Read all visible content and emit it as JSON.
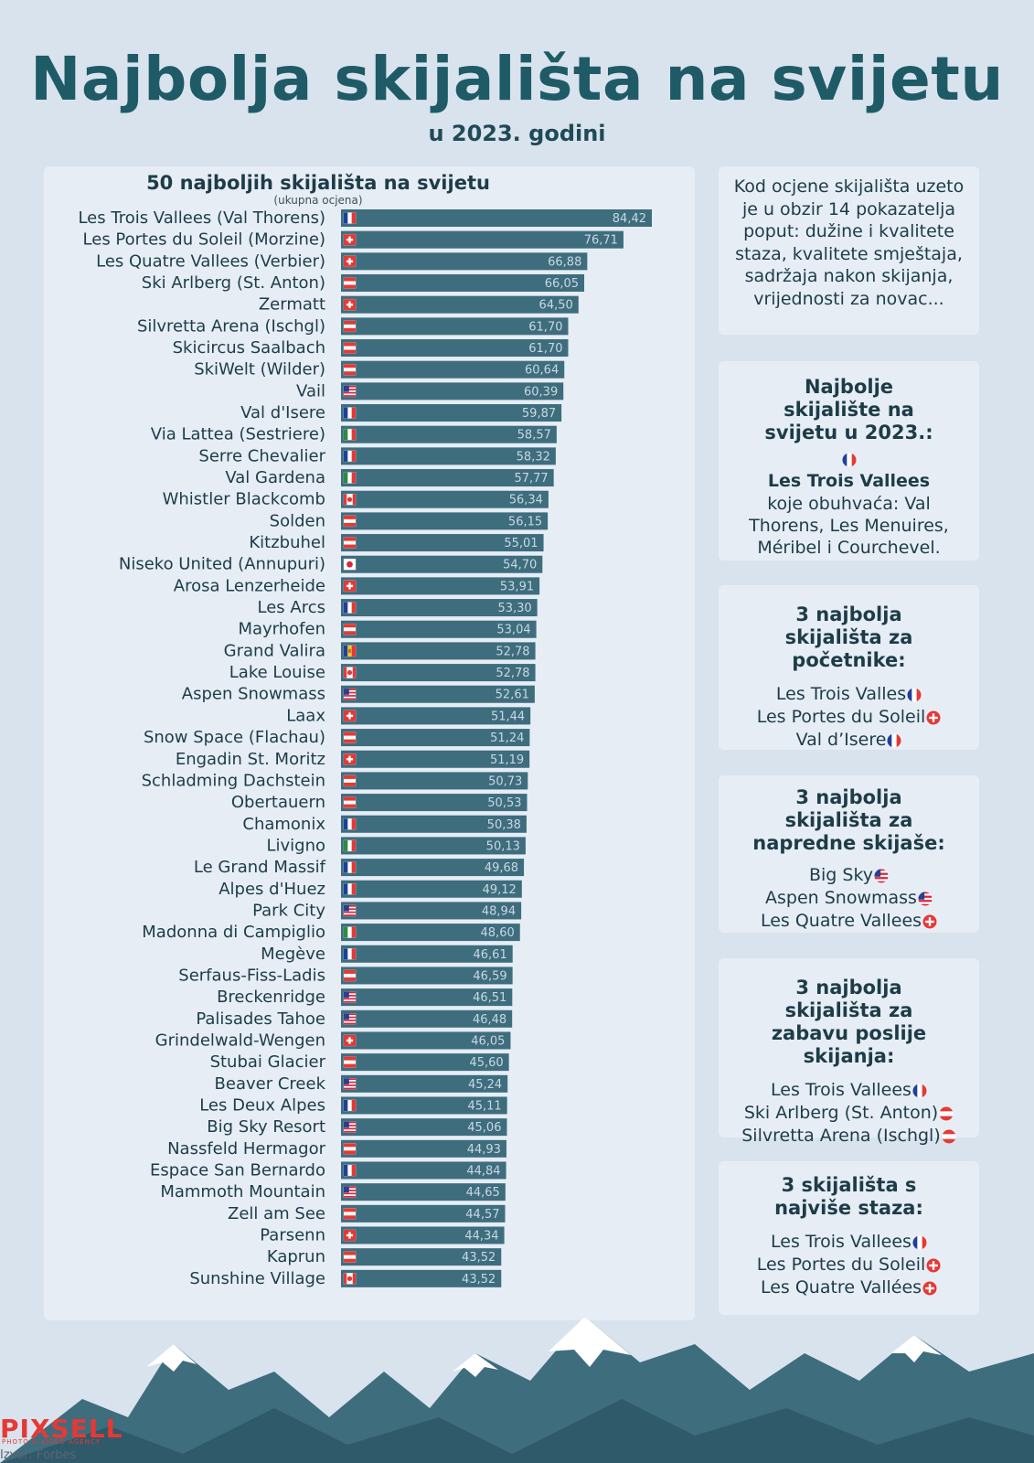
{
  "title": "Najbolja skijališta na svijetu",
  "subtitle": "u 2023. godini",
  "colors": {
    "bar": "#3e6d7e",
    "title": "#1f5b66",
    "panel": "#e6edf5",
    "background": "#d9e3ee",
    "mountain": "#3e6d7e",
    "snow": "#ffffff"
  },
  "chart_data": {
    "type": "bar",
    "orientation": "horizontal",
    "title": "50 najboljih skijališta na svijetu",
    "subtitle": "(ukupna ocjena)",
    "xlim": [
      0,
      84.42
    ],
    "categories": [
      "Les Trois Vallees (Val Thorens)",
      "Les Portes du Soleil (Morzine)",
      "Les Quatre Vallees (Verbier)",
      "Ski Arlberg (St. Anton)",
      "Zermatt",
      "Silvretta Arena (Ischgl)",
      "Skicircus Saalbach",
      "SkiWelt (Wilder)",
      "Vail",
      "Val d'Isere",
      "Via Lattea (Sestriere)",
      "Serre Chevalier",
      "Val Gardena",
      "Whistler Blackcomb",
      "Solden",
      "Kitzbuhel",
      "Niseko United (Annupuri)",
      "Arosa Lenzerheide",
      "Les Arcs",
      "Mayrhofen",
      "Grand Valira",
      "Lake Louise",
      "Aspen Snowmass",
      "Laax",
      "Snow Space (Flachau)",
      "Engadin St. Moritz",
      "Schladming Dachstein",
      "Obertauern",
      "Chamonix",
      "Livigno",
      "Le Grand Massif",
      "Alpes d'Huez",
      "Park City",
      "Madonna di Campiglio",
      "Megève",
      "Serfaus-Fiss-Ladis",
      "Breckenridge",
      "Palisades Tahoe",
      "Grindelwald-Wengen",
      "Stubai Glacier",
      "Beaver Creek",
      "Les Deux Alpes",
      "Big Sky Resort",
      "Nassfeld Hermagor",
      "Espace San Bernardo",
      "Mammoth Mountain",
      "Zell am See",
      "Parsenn",
      "Kaprun",
      "Sunshine Village"
    ],
    "values": [
      84.42,
      76.71,
      66.88,
      66.05,
      64.5,
      61.7,
      61.7,
      60.64,
      60.39,
      59.87,
      58.57,
      58.32,
      57.77,
      56.34,
      56.15,
      55.01,
      54.7,
      53.91,
      53.3,
      53.04,
      52.78,
      52.78,
      52.61,
      51.44,
      51.24,
      51.19,
      50.73,
      50.53,
      50.38,
      50.13,
      49.68,
      49.12,
      48.94,
      48.6,
      46.61,
      46.59,
      46.51,
      46.48,
      46.05,
      45.6,
      45.24,
      45.11,
      45.06,
      44.93,
      44.84,
      44.65,
      44.57,
      44.34,
      43.52,
      43.52
    ],
    "value_labels": [
      "84,42",
      "76,71",
      "66,88",
      "66,05",
      "64,50",
      "61,70",
      "61,70",
      "60,64",
      "60,39",
      "59,87",
      "58,57",
      "58,32",
      "57,77",
      "56,34",
      "56,15",
      "55,01",
      "54,70",
      "53,91",
      "53,30",
      "53,04",
      "52,78",
      "52,78",
      "52,61",
      "51,44",
      "51,24",
      "51,19",
      "50,73",
      "50,53",
      "50,38",
      "50,13",
      "49,68",
      "49,12",
      "48,94",
      "48,60",
      "46,61",
      "46,59",
      "46,51",
      "46,48",
      "46,05",
      "45,60",
      "45,24",
      "45,11",
      "45,06",
      "44,93",
      "44,84",
      "44,65",
      "44,57",
      "44,34",
      "43,52",
      "43,52"
    ],
    "countries": [
      "fr",
      "ch",
      "ch",
      "at",
      "ch",
      "at",
      "at",
      "at",
      "us",
      "fr",
      "it",
      "fr",
      "it",
      "ca",
      "at",
      "at",
      "jp",
      "ch",
      "fr",
      "at",
      "ad",
      "ca",
      "us",
      "ch",
      "at",
      "ch",
      "at",
      "at",
      "fr",
      "it",
      "fr",
      "fr",
      "us",
      "it",
      "fr",
      "at",
      "us",
      "us",
      "ch",
      "at",
      "us",
      "fr",
      "us",
      "at",
      "fr",
      "us",
      "at",
      "ch",
      "at",
      "ca"
    ]
  },
  "info_box": {
    "text": "Kod ocjene skijališta uzeto je u obzir 14 pokazatelja poput: dužine i kvalitete staza, kvalitete smještaja, sadržaja nakon skijanja, vrijednosti za novac..."
  },
  "best_box": {
    "heading": "Najbolje skijalište na svijetu u 2023.:",
    "flag": "fr",
    "name": "Les Trois Vallees",
    "text": "koje obuhvaća: Val Thorens, Les Menuires, Méribel i Courchevel."
  },
  "lists": [
    {
      "heading": "3 najbolja skijališta za početnike:",
      "items": [
        {
          "name": "Les Trois Valles",
          "flag": "fr"
        },
        {
          "name": "Les Portes du Soleil",
          "flag": "ch"
        },
        {
          "name": "Val d’Isere",
          "flag": "fr"
        }
      ]
    },
    {
      "heading": "3 najbolja skijališta za napredne skijaše:",
      "items": [
        {
          "name": "Big Sky",
          "flag": "us"
        },
        {
          "name": "Aspen Snowmass",
          "flag": "us"
        },
        {
          "name": "Les Quatre Vallees",
          "flag": "ch"
        }
      ]
    },
    {
      "heading": "3 najbolja skijališta za zabavu poslije skijanja:",
      "items": [
        {
          "name": "Les Trois Vallees",
          "flag": "fr"
        },
        {
          "name": "Ski Arlberg (St. Anton)",
          "flag": "at"
        },
        {
          "name": "Silvretta Arena (Ischgl)",
          "flag": "at"
        }
      ]
    },
    {
      "heading": "3 skijališta s najviše staza:",
      "items": [
        {
          "name": "Les Trois Vallees",
          "flag": "fr"
        },
        {
          "name": "Les Portes du Soleil",
          "flag": "ch"
        },
        {
          "name": "Les Quatre Vallées",
          "flag": "ch"
        }
      ]
    }
  ],
  "logo": {
    "text": "PIXSELL",
    "tagline": "PHOTO & VIDEO AGENCY"
  },
  "source": "Izvor: Forbes"
}
